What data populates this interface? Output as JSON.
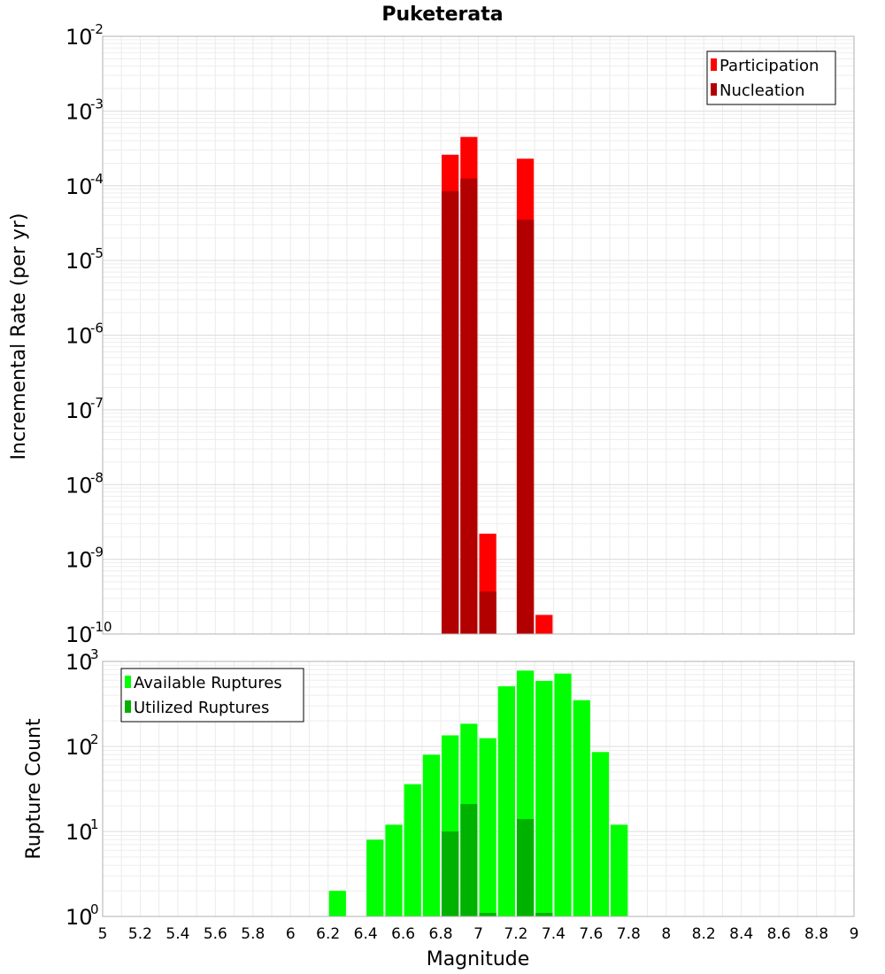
{
  "chart_data": {
    "title": "Puketerata",
    "xlabel": "Magnitude",
    "xlim": [
      5,
      9
    ],
    "x_ticks": [
      "5",
      "5.2",
      "5.4",
      "5.6",
      "5.8",
      "6",
      "6.2",
      "6.4",
      "6.6",
      "6.8",
      "7",
      "7.2",
      "7.4",
      "7.6",
      "7.8",
      "8",
      "8.2",
      "8.4",
      "8.6",
      "8.8",
      "9"
    ],
    "bin_width": 0.1,
    "panels": [
      {
        "type": "bar",
        "ylabel": "Incremental Rate (per yr)",
        "yscale": "log",
        "ylim_exp": [
          -10,
          -2
        ],
        "grid": true,
        "legend_position": "top-right",
        "series": [
          {
            "name": "Participation",
            "color": "#ff0000",
            "points": [
              {
                "x": 6.85,
                "y": 0.00026
              },
              {
                "x": 6.95,
                "y": 0.00045
              },
              {
                "x": 7.05,
                "y": 2.2e-09
              },
              {
                "x": 7.25,
                "y": 0.00023
              },
              {
                "x": 7.35,
                "y": 1.8e-10
              }
            ]
          },
          {
            "name": "Nucleation",
            "color": "#b20000",
            "points": [
              {
                "x": 6.85,
                "y": 8.5e-05
              },
              {
                "x": 6.95,
                "y": 0.000125
              },
              {
                "x": 7.05,
                "y": 3.7e-10
              },
              {
                "x": 7.25,
                "y": 3.5e-05
              }
            ]
          }
        ]
      },
      {
        "type": "bar",
        "ylabel": "Rupture Count",
        "yscale": "log",
        "ylim_exp": [
          0,
          3
        ],
        "grid": true,
        "legend_position": "top-left",
        "series": [
          {
            "name": "Available Ruptures",
            "color": "#00ff00",
            "points": [
              {
                "x": 6.25,
                "y": 2
              },
              {
                "x": 6.45,
                "y": 8
              },
              {
                "x": 6.55,
                "y": 12
              },
              {
                "x": 6.65,
                "y": 36
              },
              {
                "x": 6.75,
                "y": 80
              },
              {
                "x": 6.85,
                "y": 135
              },
              {
                "x": 6.95,
                "y": 185
              },
              {
                "x": 7.05,
                "y": 125
              },
              {
                "x": 7.15,
                "y": 510
              },
              {
                "x": 7.25,
                "y": 780
              },
              {
                "x": 7.35,
                "y": 590
              },
              {
                "x": 7.45,
                "y": 720
              },
              {
                "x": 7.55,
                "y": 350
              },
              {
                "x": 7.65,
                "y": 86
              },
              {
                "x": 7.75,
                "y": 12
              }
            ]
          },
          {
            "name": "Utilized Ruptures",
            "color": "#00b200",
            "points": [
              {
                "x": 6.85,
                "y": 10
              },
              {
                "x": 6.95,
                "y": 21
              },
              {
                "x": 7.05,
                "y": 1.1
              },
              {
                "x": 7.25,
                "y": 14
              },
              {
                "x": 7.35,
                "y": 1.1
              }
            ]
          }
        ]
      }
    ]
  }
}
